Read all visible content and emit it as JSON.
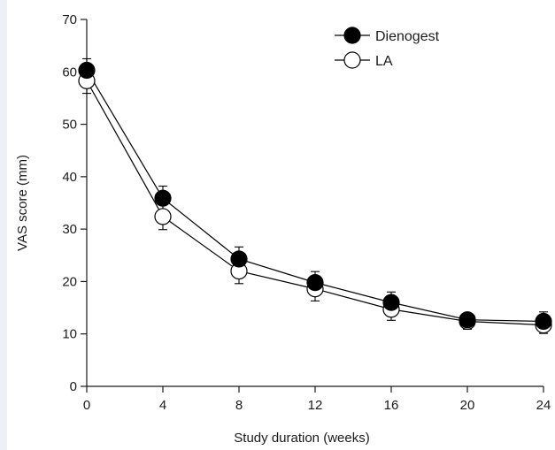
{
  "chart_data": {
    "type": "line",
    "title": "",
    "xlabel": "Study duration (weeks)",
    "ylabel": "VAS score (mm)",
    "x": [
      0,
      4,
      8,
      12,
      16,
      20,
      24
    ],
    "xticks": [
      "0",
      "4",
      "8",
      "12",
      "16",
      "20",
      "24"
    ],
    "yticks": [
      "0",
      "10",
      "20",
      "30",
      "40",
      "50",
      "60",
      "70"
    ],
    "xlim": [
      0,
      24
    ],
    "ylim": [
      0,
      70
    ],
    "grid": false,
    "legend_position": "top-right",
    "series": [
      {
        "name": "Dienogest",
        "marker": "filled-circle",
        "color": "#000000",
        "values": [
          60.3,
          35.9,
          24.3,
          19.8,
          16.0,
          12.7,
          12.4
        ],
        "error": [
          2.2,
          2.3,
          2.3,
          2.1,
          2.0,
          1.2,
          1.8
        ]
      },
      {
        "name": "LA",
        "marker": "open-circle",
        "color": "#000000",
        "values": [
          58.3,
          32.4,
          22.0,
          18.6,
          14.7,
          12.4,
          11.7
        ],
        "error": [
          2.4,
          2.5,
          2.4,
          2.3,
          2.1,
          1.5,
          1.6
        ]
      }
    ]
  }
}
